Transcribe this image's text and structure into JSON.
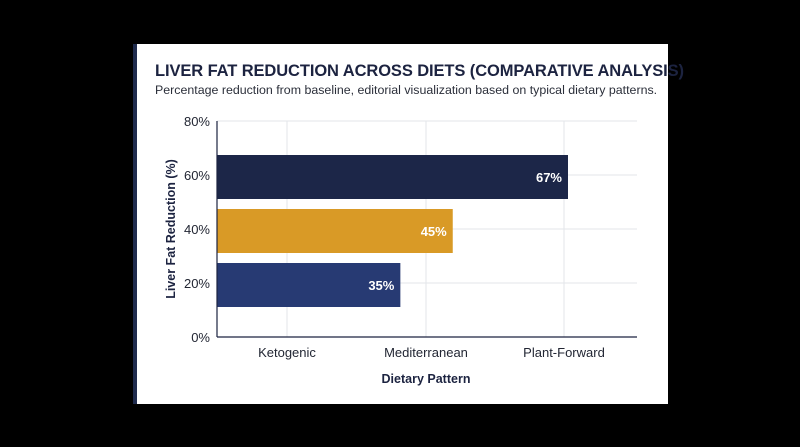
{
  "title": "LIVER FAT REDUCTION ACROSS DIETS (COMPARATIVE ANALYSIS)",
  "subtitle": "Percentage reduction from baseline, editorial visualization based on typical dietary patterns.",
  "colors": {
    "navy": "#1c2648",
    "mustard": "#d99a26",
    "royal": "#273a73",
    "accent": "#1f2b4d"
  },
  "chart_data": {
    "type": "bar",
    "orientation": "horizontal",
    "title": "LIVER FAT REDUCTION ACROSS DIETS (COMPARATIVE ANALYSIS)",
    "subtitle": "Percentage reduction from baseline, editorial visualization based on typical dietary patterns.",
    "xlabel": "Dietary Pattern",
    "ylabel": "Liver Fat Reduction (%)",
    "x_tick_labels": [
      "Ketogenic",
      "Mediterranean",
      "Plant-Forward"
    ],
    "y_tick_labels": [
      "0%",
      "20%",
      "40%",
      "60%",
      "80%"
    ],
    "ylim": [
      0,
      80
    ],
    "grid": true,
    "bars": [
      {
        "value": 67,
        "label": "67%",
        "color": "#1c2648",
        "level": 60
      },
      {
        "value": 45,
        "label": "45%",
        "color": "#d99a26",
        "level": 40
      },
      {
        "value": 35,
        "label": "35%",
        "color": "#273a73",
        "level": 20
      }
    ]
  }
}
